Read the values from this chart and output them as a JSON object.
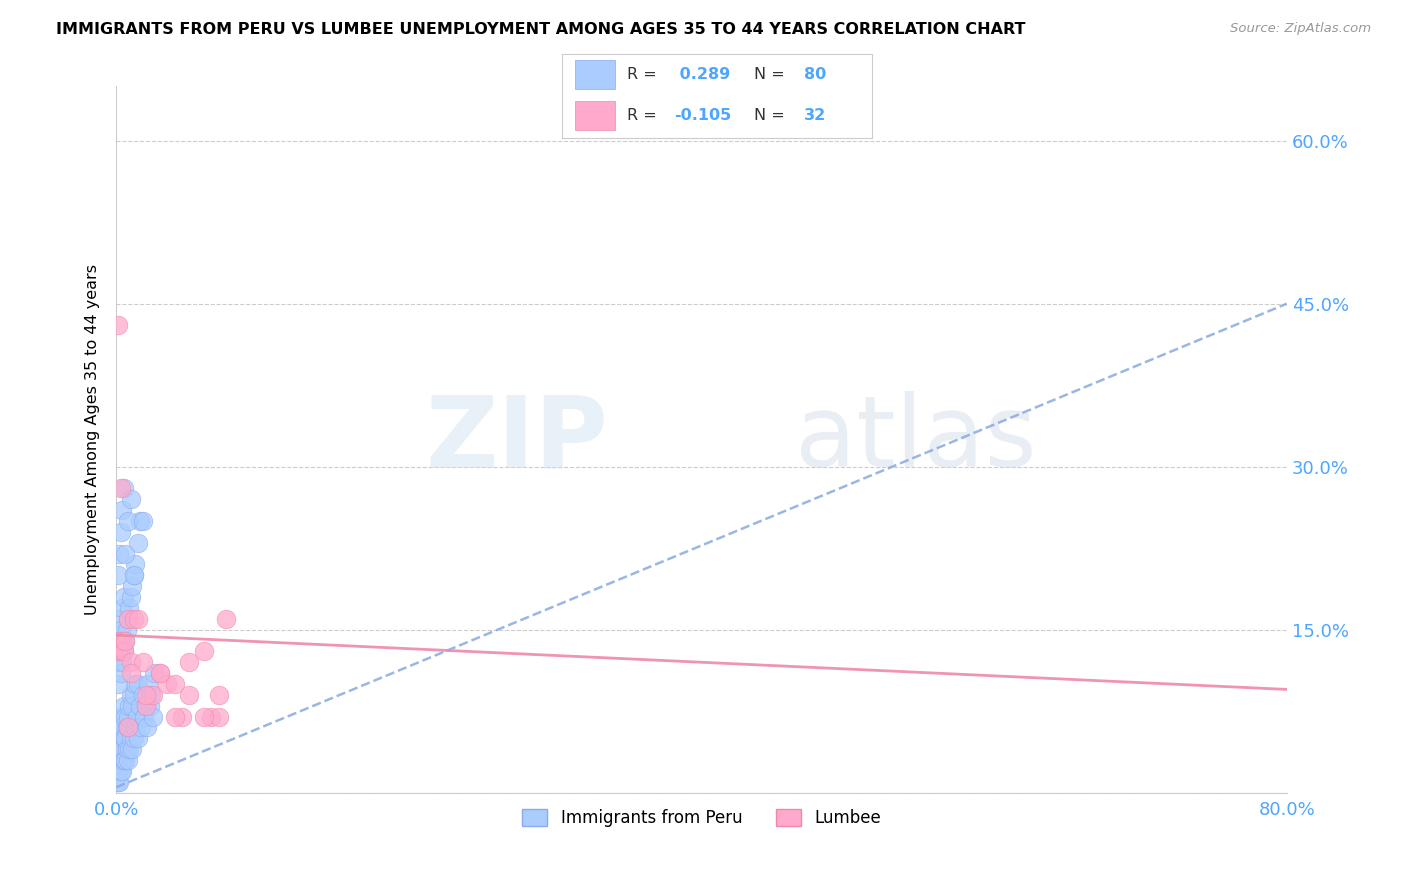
{
  "title": "IMMIGRANTS FROM PERU VS LUMBEE UNEMPLOYMENT AMONG AGES 35 TO 44 YEARS CORRELATION CHART",
  "source": "Source: ZipAtlas.com",
  "ylabel": "Unemployment Among Ages 35 to 44 years",
  "xlim": [
    0.0,
    0.8
  ],
  "ylim": [
    0.0,
    0.65
  ],
  "x_ticks": [
    0.0,
    0.1,
    0.2,
    0.3,
    0.4,
    0.5,
    0.6,
    0.7,
    0.8
  ],
  "y_ticks_right": [
    0.0,
    0.15,
    0.3,
    0.45,
    0.6
  ],
  "y_tick_labels_right": [
    "",
    "15.0%",
    "30.0%",
    "45.0%",
    "60.0%"
  ],
  "blue_R": 0.289,
  "blue_N": 80,
  "pink_R": -0.105,
  "pink_N": 32,
  "blue_color": "#aaccff",
  "pink_color": "#ffaacc",
  "blue_edge_color": "#88aaee",
  "pink_edge_color": "#ee88aa",
  "blue_line_color": "#88aadd",
  "pink_line_color": "#ee88aa",
  "legend_label_blue": "Immigrants from Peru",
  "legend_label_pink": "Lumbee",
  "watermark_zip": "ZIP",
  "watermark_atlas": "atlas",
  "blue_trend_x": [
    0.0,
    0.8
  ],
  "blue_trend_y": [
    0.005,
    0.45
  ],
  "pink_trend_x": [
    0.0,
    0.8
  ],
  "pink_trend_y": [
    0.145,
    0.095
  ],
  "blue_scatter_x": [
    0.0005,
    0.001,
    0.001,
    0.001,
    0.0015,
    0.002,
    0.002,
    0.002,
    0.002,
    0.003,
    0.003,
    0.003,
    0.003,
    0.004,
    0.004,
    0.004,
    0.005,
    0.005,
    0.005,
    0.006,
    0.006,
    0.006,
    0.007,
    0.007,
    0.008,
    0.008,
    0.009,
    0.009,
    0.01,
    0.01,
    0.011,
    0.011,
    0.012,
    0.012,
    0.013,
    0.013,
    0.014,
    0.015,
    0.015,
    0.016,
    0.017,
    0.018,
    0.019,
    0.02,
    0.021,
    0.022,
    0.023,
    0.024,
    0.025,
    0.026,
    0.001,
    0.001,
    0.002,
    0.002,
    0.003,
    0.003,
    0.004,
    0.004,
    0.005,
    0.005,
    0.006,
    0.007,
    0.008,
    0.009,
    0.01,
    0.011,
    0.012,
    0.013,
    0.015,
    0.016,
    0.001,
    0.002,
    0.003,
    0.004,
    0.005,
    0.006,
    0.008,
    0.01,
    0.012,
    0.018
  ],
  "blue_scatter_y": [
    0.02,
    0.01,
    0.03,
    0.05,
    0.02,
    0.01,
    0.03,
    0.04,
    0.06,
    0.02,
    0.03,
    0.05,
    0.07,
    0.02,
    0.04,
    0.06,
    0.03,
    0.05,
    0.08,
    0.03,
    0.05,
    0.07,
    0.04,
    0.06,
    0.03,
    0.07,
    0.04,
    0.08,
    0.05,
    0.09,
    0.04,
    0.08,
    0.05,
    0.09,
    0.06,
    0.1,
    0.07,
    0.05,
    0.1,
    0.08,
    0.06,
    0.09,
    0.07,
    0.08,
    0.06,
    0.1,
    0.08,
    0.09,
    0.07,
    0.11,
    0.1,
    0.14,
    0.12,
    0.16,
    0.11,
    0.15,
    0.12,
    0.17,
    0.13,
    0.18,
    0.14,
    0.15,
    0.16,
    0.17,
    0.18,
    0.19,
    0.2,
    0.21,
    0.23,
    0.25,
    0.2,
    0.22,
    0.24,
    0.26,
    0.28,
    0.22,
    0.25,
    0.27,
    0.2,
    0.25
  ],
  "pink_scatter_x": [
    0.001,
    0.001,
    0.002,
    0.003,
    0.004,
    0.005,
    0.006,
    0.008,
    0.01,
    0.012,
    0.015,
    0.018,
    0.02,
    0.025,
    0.03,
    0.035,
    0.04,
    0.045,
    0.05,
    0.06,
    0.065,
    0.07,
    0.075,
    0.01,
    0.02,
    0.03,
    0.04,
    0.05,
    0.06,
    0.07,
    0.003,
    0.008
  ],
  "pink_scatter_y": [
    0.13,
    0.43,
    0.14,
    0.13,
    0.14,
    0.13,
    0.14,
    0.16,
    0.12,
    0.16,
    0.16,
    0.12,
    0.08,
    0.09,
    0.11,
    0.1,
    0.1,
    0.07,
    0.12,
    0.13,
    0.07,
    0.07,
    0.16,
    0.11,
    0.09,
    0.11,
    0.07,
    0.09,
    0.07,
    0.09,
    0.28,
    0.06
  ]
}
